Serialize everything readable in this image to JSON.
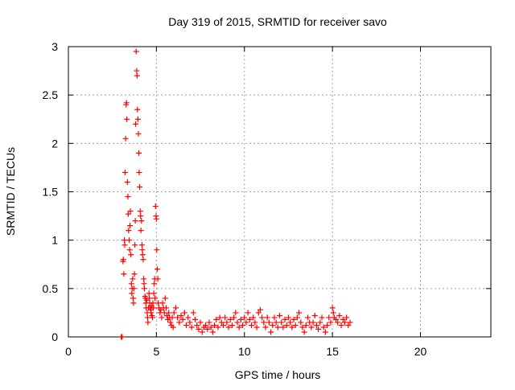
{
  "chart_data": {
    "type": "scatter",
    "title": "Day 319 of 2015, SRMTID for receiver savo",
    "xlabel": "GPS time / hours",
    "ylabel": "SRMTID / TECUs",
    "xlim": [
      0,
      24
    ],
    "ylim": [
      0,
      3
    ],
    "xticks": [
      0,
      5,
      10,
      15,
      20
    ],
    "yticks": [
      0,
      0.5,
      1,
      1.5,
      2,
      2.5,
      3
    ],
    "xtick_labels": [
      "0",
      "5",
      "10",
      "15",
      "20"
    ],
    "ytick_labels": [
      "0",
      "0.5",
      "1",
      "1.5",
      "2",
      "2.5",
      "3"
    ],
    "grid": true,
    "legend": "none",
    "marker": "plus",
    "color": "#ff0000",
    "series": [
      {
        "name": "SRMTID",
        "points": [
          [
            3.0,
            0.0
          ],
          [
            3.05,
            0.0
          ],
          [
            3.1,
            0.78
          ],
          [
            3.12,
            0.8
          ],
          [
            3.15,
            0.65
          ],
          [
            3.18,
            1.0
          ],
          [
            3.2,
            0.95
          ],
          [
            3.22,
            1.7
          ],
          [
            3.25,
            2.05
          ],
          [
            3.28,
            2.4
          ],
          [
            3.3,
            2.42
          ],
          [
            3.32,
            2.25
          ],
          [
            3.35,
            1.6
          ],
          [
            3.38,
            1.45
          ],
          [
            3.4,
            1.27
          ],
          [
            3.42,
            1.1
          ],
          [
            3.45,
            1.0
          ],
          [
            3.48,
            0.9
          ],
          [
            3.5,
            1.15
          ],
          [
            3.52,
            1.3
          ],
          [
            3.55,
            0.85
          ],
          [
            3.58,
            0.55
          ],
          [
            3.6,
            0.45
          ],
          [
            3.62,
            0.5
          ],
          [
            3.65,
            0.6
          ],
          [
            3.68,
            0.4
          ],
          [
            3.7,
            0.35
          ],
          [
            3.72,
            0.5
          ],
          [
            3.75,
            0.65
          ],
          [
            3.78,
            0.95
          ],
          [
            3.8,
            1.2
          ],
          [
            3.82,
            2.2
          ],
          [
            3.85,
            2.95
          ],
          [
            3.88,
            2.75
          ],
          [
            3.9,
            2.7
          ],
          [
            3.92,
            2.35
          ],
          [
            3.95,
            2.25
          ],
          [
            3.98,
            2.1
          ],
          [
            4.0,
            1.9
          ],
          [
            4.02,
            1.7
          ],
          [
            4.05,
            1.55
          ],
          [
            4.08,
            1.3
          ],
          [
            4.1,
            1.25
          ],
          [
            4.12,
            1.1
          ],
          [
            4.15,
            1.2
          ],
          [
            4.18,
            0.95
          ],
          [
            4.2,
            0.9
          ],
          [
            4.22,
            0.85
          ],
          [
            4.25,
            0.8
          ],
          [
            4.28,
            0.6
          ],
          [
            4.3,
            0.55
          ],
          [
            4.32,
            0.5
          ],
          [
            4.35,
            0.42
          ],
          [
            4.38,
            0.4
          ],
          [
            4.4,
            0.35
          ],
          [
            4.42,
            0.3
          ],
          [
            4.45,
            0.38
          ],
          [
            4.48,
            0.25
          ],
          [
            4.5,
            0.2
          ],
          [
            4.52,
            0.15
          ],
          [
            4.55,
            0.3
          ],
          [
            4.58,
            0.45
          ],
          [
            4.6,
            0.4
          ],
          [
            4.62,
            0.35
          ],
          [
            4.65,
            0.3
          ],
          [
            4.68,
            0.28
          ],
          [
            4.7,
            0.25
          ],
          [
            4.72,
            0.32
          ],
          [
            4.75,
            0.22
          ],
          [
            4.78,
            0.2
          ],
          [
            4.8,
            0.35
          ],
          [
            4.82,
            0.3
          ],
          [
            4.85,
            0.45
          ],
          [
            4.88,
            0.55
          ],
          [
            4.9,
            0.6
          ],
          [
            4.92,
            0.4
          ],
          [
            4.95,
            1.35
          ],
          [
            4.98,
            1.25
          ],
          [
            5.0,
            1.22
          ],
          [
            5.02,
            0.9
          ],
          [
            5.05,
            0.7
          ],
          [
            5.08,
            0.6
          ],
          [
            5.1,
            0.35
          ],
          [
            5.15,
            0.3
          ],
          [
            5.2,
            0.25
          ],
          [
            5.25,
            0.28
          ],
          [
            5.3,
            0.2
          ],
          [
            5.35,
            0.35
          ],
          [
            5.4,
            0.3
          ],
          [
            5.45,
            0.25
          ],
          [
            5.5,
            0.4
          ],
          [
            5.55,
            0.3
          ],
          [
            5.6,
            0.22
          ],
          [
            5.65,
            0.18
          ],
          [
            5.7,
            0.25
          ],
          [
            5.75,
            0.2
          ],
          [
            5.8,
            0.15
          ],
          [
            5.85,
            0.12
          ],
          [
            5.9,
            0.2
          ],
          [
            5.95,
            0.1
          ],
          [
            6.0,
            0.25
          ],
          [
            6.1,
            0.3
          ],
          [
            6.2,
            0.2
          ],
          [
            6.3,
            0.15
          ],
          [
            6.4,
            0.22
          ],
          [
            6.5,
            0.18
          ],
          [
            6.6,
            0.25
          ],
          [
            6.7,
            0.12
          ],
          [
            6.8,
            0.2
          ],
          [
            6.9,
            0.15
          ],
          [
            7.0,
            0.1
          ],
          [
            7.1,
            0.25
          ],
          [
            7.2,
            0.18
          ],
          [
            7.3,
            0.12
          ],
          [
            7.4,
            0.08
          ],
          [
            7.5,
            0.15
          ],
          [
            7.6,
            0.05
          ],
          [
            7.7,
            0.1
          ],
          [
            7.8,
            0.12
          ],
          [
            7.9,
            0.08
          ],
          [
            8.0,
            0.15
          ],
          [
            8.1,
            0.1
          ],
          [
            8.2,
            0.05
          ],
          [
            8.3,
            0.12
          ],
          [
            8.4,
            0.18
          ],
          [
            8.5,
            0.1
          ],
          [
            8.6,
            0.2
          ],
          [
            8.7,
            0.15
          ],
          [
            8.8,
            0.12
          ],
          [
            8.9,
            0.2
          ],
          [
            9.0,
            0.15
          ],
          [
            9.1,
            0.1
          ],
          [
            9.2,
            0.18
          ],
          [
            9.3,
            0.12
          ],
          [
            9.4,
            0.2
          ],
          [
            9.5,
            0.25
          ],
          [
            9.6,
            0.15
          ],
          [
            9.7,
            0.1
          ],
          [
            9.8,
            0.18
          ],
          [
            9.9,
            0.12
          ],
          [
            10.0,
            0.2
          ],
          [
            10.1,
            0.15
          ],
          [
            10.2,
            0.25
          ],
          [
            10.3,
            0.18
          ],
          [
            10.4,
            0.12
          ],
          [
            10.5,
            0.2
          ],
          [
            10.6,
            0.15
          ],
          [
            10.7,
            0.1
          ],
          [
            10.8,
            0.25
          ],
          [
            10.9,
            0.28
          ],
          [
            11.0,
            0.2
          ],
          [
            11.1,
            0.15
          ],
          [
            11.2,
            0.1
          ],
          [
            11.3,
            0.2
          ],
          [
            11.4,
            0.15
          ],
          [
            11.5,
            0.05
          ],
          [
            11.6,
            0.12
          ],
          [
            11.7,
            0.2
          ],
          [
            11.8,
            0.15
          ],
          [
            11.9,
            0.1
          ],
          [
            12.0,
            0.22
          ],
          [
            12.1,
            0.15
          ],
          [
            12.2,
            0.1
          ],
          [
            12.3,
            0.18
          ],
          [
            12.4,
            0.12
          ],
          [
            12.5,
            0.2
          ],
          [
            12.6,
            0.15
          ],
          [
            12.7,
            0.1
          ],
          [
            12.8,
            0.18
          ],
          [
            12.9,
            0.12
          ],
          [
            13.0,
            0.2
          ],
          [
            13.1,
            0.25
          ],
          [
            13.2,
            0.15
          ],
          [
            13.3,
            0.1
          ],
          [
            13.4,
            0.05
          ],
          [
            13.5,
            0.12
          ],
          [
            13.6,
            0.2
          ],
          [
            13.7,
            0.15
          ],
          [
            13.8,
            0.1
          ],
          [
            13.9,
            0.15
          ],
          [
            14.0,
            0.22
          ],
          [
            14.1,
            0.12
          ],
          [
            14.2,
            0.08
          ],
          [
            14.3,
            0.15
          ],
          [
            14.4,
            0.2
          ],
          [
            14.5,
            0.1
          ],
          [
            14.6,
            0.05
          ],
          [
            14.7,
            0.12
          ],
          [
            14.8,
            0.2
          ],
          [
            14.9,
            0.15
          ],
          [
            15.0,
            0.3
          ],
          [
            15.05,
            0.25
          ],
          [
            15.1,
            0.2
          ],
          [
            15.2,
            0.18
          ],
          [
            15.3,
            0.15
          ],
          [
            15.4,
            0.22
          ],
          [
            15.5,
            0.12
          ],
          [
            15.6,
            0.18
          ],
          [
            15.7,
            0.15
          ],
          [
            15.8,
            0.2
          ],
          [
            15.9,
            0.12
          ],
          [
            16.0,
            0.15
          ]
        ]
      }
    ]
  }
}
